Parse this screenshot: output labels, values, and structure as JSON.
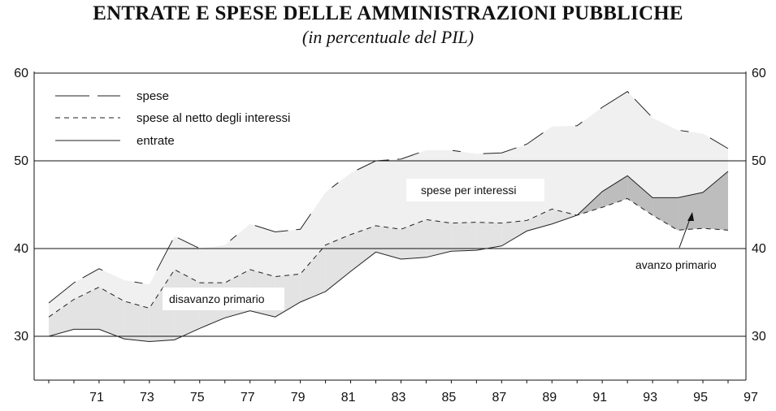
{
  "header": {
    "title": "ENTRATE E SPESE DELLE AMMINISTRAZIONI PUBBLICHE",
    "subtitle": "(in percentuale del PIL)"
  },
  "annotations": {
    "interest": "spese per interessi",
    "deficit": "disavanzo primario",
    "surplus": "avanzo primario"
  },
  "colors": {
    "interest_fill": "#f0f0f0",
    "deficit_fill": "#e3e3e3",
    "surplus_fill": "#bdbdbd",
    "line": "#222222",
    "grid": "#111111"
  },
  "chart_data": {
    "type": "area",
    "title": "ENTRATE E SPESE DELLE AMMINISTRAZIONI PUBBLICHE",
    "subtitle": "(in percentuale del PIL)",
    "xlabel": "",
    "ylabel": "",
    "x": [
      1970,
      1971,
      1972,
      1973,
      1974,
      1975,
      1976,
      1977,
      1978,
      1979,
      1980,
      1981,
      1982,
      1983,
      1984,
      1985,
      1986,
      1987,
      1988,
      1989,
      1990,
      1991,
      1992,
      1993,
      1994,
      1995,
      1996,
      1997
    ],
    "x_tick_labels": [
      "71",
      "73",
      "75",
      "77",
      "79",
      "81",
      "83",
      "85",
      "87",
      "89",
      "91",
      "93",
      "95",
      "97"
    ],
    "y_ticks": [
      30,
      40,
      50,
      60
    ],
    "ylim": [
      25,
      60
    ],
    "grid": "horizontal lines at 30, 40, 50, 60",
    "legend_position": "top-left",
    "series": [
      {
        "name": "spese",
        "style": "long-dash",
        "values": [
          33.8,
          36.1,
          37.7,
          36.4,
          35.9,
          41.4,
          40.0,
          40.4,
          42.8,
          41.9,
          42.2,
          46.4,
          48.6,
          50.0,
          50.2,
          51.2,
          51.2,
          50.8,
          50.9,
          51.9,
          53.9,
          54.0,
          56.1,
          57.9,
          54.9,
          53.5,
          53.1,
          51.4
        ]
      },
      {
        "name": "spese al netto degli interessi",
        "style": "dashed",
        "values": [
          32.2,
          34.2,
          35.6,
          34.0,
          33.2,
          37.6,
          36.1,
          36.1,
          37.6,
          36.8,
          37.1,
          40.4,
          41.6,
          42.6,
          42.2,
          43.3,
          42.9,
          43.0,
          42.9,
          43.2,
          44.5,
          43.8,
          44.7,
          45.7,
          43.8,
          42.1,
          42.3,
          42.1
        ]
      },
      {
        "name": "entrate",
        "style": "solid",
        "values": [
          30.0,
          30.8,
          30.8,
          29.7,
          29.4,
          29.6,
          30.9,
          32.1,
          32.9,
          32.2,
          33.9,
          35.1,
          37.4,
          39.6,
          38.8,
          39.0,
          39.7,
          39.8,
          40.3,
          42.0,
          42.8,
          43.8,
          46.5,
          48.3,
          45.8,
          45.8,
          46.4,
          48.8
        ]
      }
    ],
    "regions": [
      {
        "label": "spese per interessi",
        "between": [
          "spese",
          "spese al netto degli interessi"
        ]
      },
      {
        "label": "disavanzo primario",
        "between": [
          "spese al netto degli interessi",
          "entrate"
        ],
        "where": "netto > entrate"
      },
      {
        "label": "avanzo primario",
        "between": [
          "entrate",
          "spese al netto degli interessi"
        ],
        "where": "entrate > netto"
      }
    ]
  }
}
